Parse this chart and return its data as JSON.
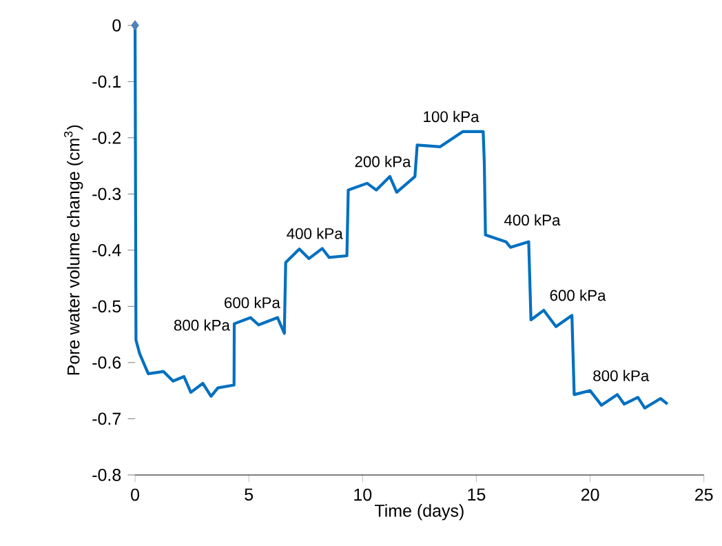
{
  "chart_data": {
    "type": "line",
    "xlabel": "Time  (days)",
    "ylabel": "Pore water volume change  (cm$^{3}$)",
    "xlim": [
      0,
      25
    ],
    "ylim": [
      -0.8,
      0
    ],
    "xticks": [
      0,
      5,
      10,
      15,
      20,
      25
    ],
    "yticks": [
      -0.8,
      -0.7,
      -0.6,
      -0.5,
      -0.4,
      -0.3,
      -0.2,
      -0.1,
      0
    ],
    "grid": false,
    "series": [
      {
        "color": "#0070c0",
        "x": [
          0,
          0.04,
          0.2,
          0.58,
          1.25,
          1.67,
          2.15,
          2.45,
          2.98,
          3.34,
          3.64,
          4.35,
          4.36,
          5.07,
          5.43,
          6.26,
          6.56,
          6.62,
          7.22,
          7.64,
          8.23,
          8.53,
          9.31,
          9.37,
          10.2,
          10.6,
          11.2,
          11.5,
          12.3,
          12.4,
          13.4,
          14.4,
          15.3,
          15.35,
          15.4,
          16.3,
          16.5,
          17.3,
          17.4,
          17.96,
          18.5,
          19.2,
          19.3,
          20.0,
          20.5,
          21.2,
          21.5,
          22.1,
          22.4,
          23.1,
          23.4
        ],
        "values": [
          0,
          -0.56,
          -0.584,
          -0.62,
          -0.616,
          -0.633,
          -0.625,
          -0.653,
          -0.637,
          -0.66,
          -0.645,
          -0.64,
          -0.531,
          -0.52,
          -0.533,
          -0.52,
          -0.548,
          -0.422,
          -0.398,
          -0.415,
          -0.397,
          -0.413,
          -0.41,
          -0.293,
          -0.281,
          -0.293,
          -0.269,
          -0.297,
          -0.269,
          -0.213,
          -0.216,
          -0.189,
          -0.189,
          -0.245,
          -0.373,
          -0.385,
          -0.395,
          -0.385,
          -0.524,
          -0.507,
          -0.536,
          -0.516,
          -0.657,
          -0.65,
          -0.676,
          -0.657,
          -0.674,
          -0.662,
          -0.681,
          -0.664,
          -0.674
        ]
      },
      {
        "type": "scatter",
        "marker": "diamond",
        "color": "#4f81bd",
        "x": [
          0
        ],
        "values": [
          0
        ]
      }
    ],
    "annotations": [
      "800 kPa",
      "600 kPa",
      "400 kPa",
      "200 kPa",
      "100 kPa",
      "400 kPa",
      "600 kPa",
      "800 kPa"
    ]
  }
}
